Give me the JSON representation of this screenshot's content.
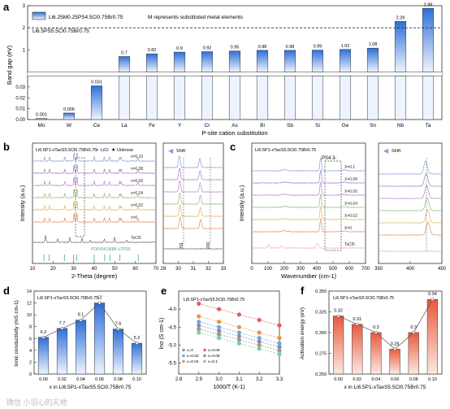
{
  "panels": {
    "a": {
      "letter": "a",
      "legend_formula": "Li6.25M0.25PS4.5Cl0.75Br0.75",
      "legend_note": "M represents substituted metal elements",
      "ref_label": "Li6.5PS5.5Cl0.75Br0.75",
      "ylabel": "Band gap (eV)",
      "xlabel": "P-site cation substitution"
    },
    "b": {
      "letter": "b",
      "title": "Li6.5P1-xTaxS5.5Cl0.75Br0.75",
      "legend_licl": "LiCl",
      "legend_unknown": "Unknow",
      "ylabel": "Intensity (a.u.)",
      "xlabel": "2-Theta (degree)",
      "series_labels": [
        "x=0.10",
        "x=0.08",
        "x=0.06",
        "x=0.04",
        "x=0.02",
        "x=0",
        "TaCl5"
      ],
      "pdf_label": "PDF#34-0688 Li7PS6",
      "zoom_shift": "Shift",
      "zoom_peak1": "311",
      "zoom_peak2": "220"
    },
    "c": {
      "letter": "c",
      "title": "Li6.5P1-xTaxS5.5Cl0.75Br0.75",
      "ion_label": "PS4 3-",
      "ylabel": "Intensity (a.u.)",
      "xlabel": "Wavenumber (cm-1)",
      "series_labels": [
        "X=0.1",
        "X=0.08",
        "X=0.06",
        "X=0.04",
        "X=0.02",
        "X=0",
        "TaCl5"
      ],
      "zoom_shift": "Shift"
    },
    "d": {
      "letter": "d",
      "title": "Li6.5P1-xTaxS5.5Cl0.75Br0.75",
      "ylabel": "Ionic conductivity (mS cm-1)",
      "xlabel": "x in Li6.5P1-xTaxS5.5Cl0.75Br0.75"
    },
    "e": {
      "letter": "e",
      "title": "Li6.5P1-xTaxS5.5Cl0.75Br0.75",
      "ylabel": "lnσ (S cm-1)",
      "xlabel": "1000/T (K-1)"
    },
    "f": {
      "letter": "f",
      "title": "Li6.5P1-xTaxS5.5Cl0.75Br0.75",
      "ylabel": "Activation energy (eV)",
      "xlabel": "x in Li6.5P1-xTaxS5.5Cl0.75Br0.75"
    }
  },
  "watermark": "微信 小羽心的天地",
  "colors": {
    "bar_blue_top": "#2f6fd6",
    "bar_blue_bottom": "#eef4ff",
    "bar_red_top": "#e8593c",
    "bar_red_bottom": "#fde8e1",
    "xrd": [
      "#6f8fd4",
      "#8b6fbe",
      "#b06fc0",
      "#8aa86a",
      "#d9a845",
      "#e07d3f",
      "#555555"
    ],
    "raman": [
      "#6f8fd4",
      "#8b6fbe",
      "#b06fc0",
      "#8aa86a",
      "#d9a845",
      "#e07d3f",
      "#e9a4a4"
    ]
  },
  "chart_data": [
    {
      "panel": "a",
      "type": "bar",
      "categories": [
        "Mo",
        "W",
        "Ce",
        "La",
        "Fe",
        "Y",
        "Cr",
        "As",
        "Bi",
        "Sb",
        "Si",
        "Ge",
        "Sn",
        "Nb",
        "Ta"
      ],
      "values": [
        0.001,
        0.006,
        0.031,
        0.7,
        0.82,
        0.9,
        0.92,
        0.95,
        0.98,
        0.98,
        0.99,
        1.02,
        1.08,
        2.29,
        2.88
      ],
      "value_labels": [
        "0.001",
        "0.006",
        "0.031",
        "0.7",
        "0.82",
        "0.9",
        "0.92",
        "0.95",
        "0.98",
        "0.98",
        "0.99",
        "1.02",
        "1.08",
        "2.29",
        "2.88"
      ],
      "reference_line": 2.0,
      "axis_break": true,
      "ylim_lower": [
        0,
        0.04
      ],
      "ylim_upper": [
        0,
        3
      ],
      "yticks_lower": [
        "0.00",
        "0.01",
        "0.02",
        "0.03"
      ],
      "yticks_upper": [
        "1",
        "2",
        "3"
      ],
      "grid": false,
      "legend_position": "top-left"
    },
    {
      "panel": "b",
      "type": "line",
      "xlim": [
        10,
        70
      ],
      "xticks": [
        "10",
        "20",
        "30",
        "40",
        "50",
        "60",
        "70"
      ],
      "zoom_xlim": [
        29,
        33
      ],
      "zoom_xticks": [
        "29",
        "30",
        "31",
        "32",
        "33"
      ],
      "series": [
        "x=0.10",
        "x=0.08",
        "x=0.06",
        "x=0.04",
        "x=0.02",
        "x=0",
        "TaCl5"
      ],
      "main_peaks_2theta": [
        15.6,
        18.0,
        25.5,
        30.1,
        31.5,
        40.0,
        45.0,
        47.5,
        52.5,
        53.3,
        61.5
      ],
      "reference_ticks": [
        15.6,
        18.0,
        25.5,
        30.0,
        31.4,
        40.0,
        45.1,
        47.6,
        52.5,
        61.4
      ]
    },
    {
      "panel": "c",
      "type": "line",
      "xlim": [
        0,
        700
      ],
      "xticks": [
        "0",
        "100",
        "200",
        "300",
        "400",
        "500",
        "600",
        "700"
      ],
      "zoom_xlim": [
        350,
        450
      ],
      "zoom_xticks": [
        "350",
        "400",
        "450"
      ],
      "series": [
        "X=0.1",
        "X=0.08",
        "X=0.06",
        "X=0.04",
        "X=0.02",
        "X=0",
        "TaCl5"
      ],
      "main_peak_cm": 425
    },
    {
      "panel": "d",
      "type": "bar",
      "categories": [
        "0.00",
        "0.02",
        "0.04",
        "0.06",
        "0.08",
        "0.10"
      ],
      "values": [
        6.2,
        7.7,
        9.1,
        12.0,
        7.6,
        5.2
      ],
      "value_labels": [
        "6.2",
        "7.7",
        "9.1",
        "12",
        "7.6",
        "5.2"
      ],
      "ylim": [
        0,
        14
      ],
      "yticks": [
        "0",
        "2",
        "4",
        "6",
        "8",
        "10",
        "12",
        "14"
      ]
    },
    {
      "panel": "e",
      "type": "scatter",
      "xlim": [
        2.8,
        3.3
      ],
      "xticks": [
        "2.8",
        "2.9",
        "3.0",
        "3.1",
        "3.2",
        "3.3"
      ],
      "ylim": [
        -5.8,
        -3.5
      ],
      "yticks": [
        "-4.0",
        "-4.5",
        "-5.0",
        "-5.5"
      ],
      "x": [
        2.9,
        3.0,
        3.1,
        3.2,
        3.3
      ],
      "series": [
        {
          "name": "x=0",
          "color": "#8aa86a",
          "values": [
            -4.55,
            -4.7,
            -4.85,
            -5.0,
            -5.15
          ]
        },
        {
          "name": "x=0.02",
          "color": "#6fa8d8",
          "values": [
            -4.35,
            -4.5,
            -4.65,
            -4.8,
            -4.95
          ]
        },
        {
          "name": "x=0.04",
          "color": "#e8953c",
          "values": [
            -4.2,
            -4.35,
            -4.5,
            -4.65,
            -4.8
          ]
        },
        {
          "name": "x=0.06",
          "color": "#e35d5d",
          "values": [
            -3.85,
            -4.0,
            -4.15,
            -4.3,
            -4.45
          ]
        },
        {
          "name": "x=0.08",
          "color": "#9b7fc7",
          "values": [
            -4.45,
            -4.6,
            -4.75,
            -4.9,
            -5.05
          ]
        },
        {
          "name": "x=0.1",
          "color": "#7fc7b5",
          "values": [
            -4.65,
            -4.8,
            -4.95,
            -5.1,
            -5.25
          ]
        }
      ],
      "legend_position": "bottom-left"
    },
    {
      "panel": "f",
      "type": "bar",
      "categories": [
        "0.00",
        "0.02",
        "0.04",
        "0.06",
        "0.08",
        "0.10"
      ],
      "values": [
        0.32,
        0.31,
        0.3,
        0.28,
        0.3,
        0.34
      ],
      "value_labels": [
        "0.32",
        "0.31",
        "0.3",
        "0.28",
        "0.3",
        "0.34"
      ],
      "ylim": [
        0.25,
        0.35
      ],
      "yticks": [
        "0.250",
        "0.275",
        "0.300",
        "0.325",
        "0.350"
      ]
    }
  ]
}
